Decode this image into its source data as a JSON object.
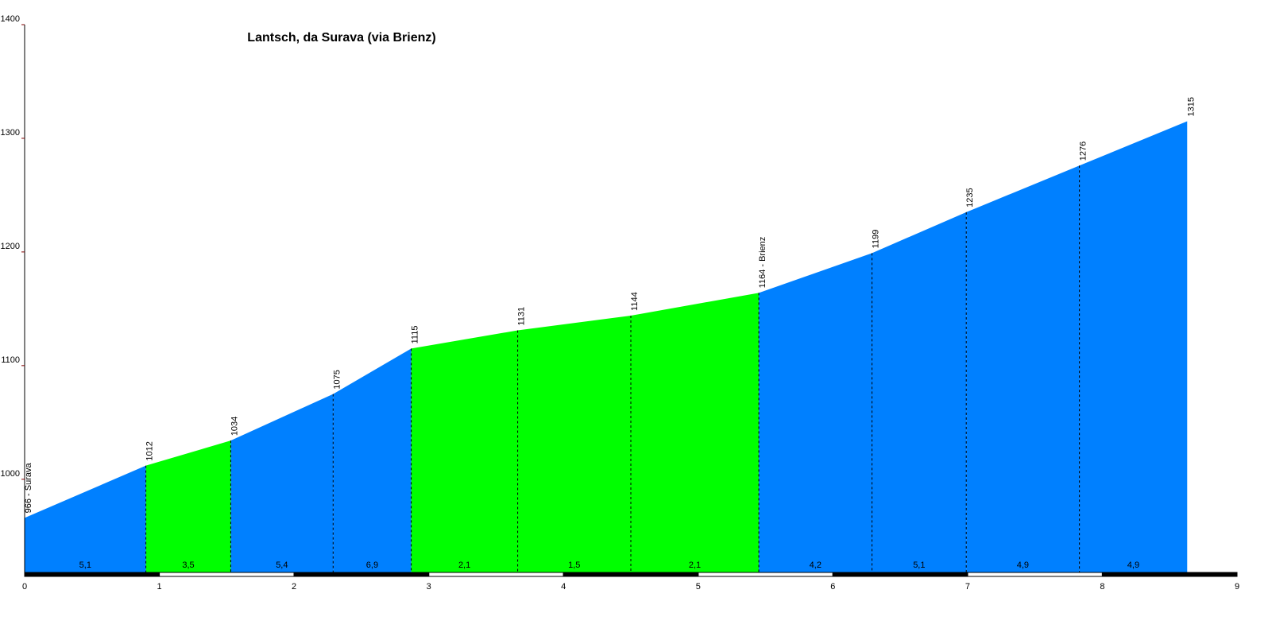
{
  "chart_data": {
    "type": "area",
    "title": "Lantsch, da Surava (via Brienz)",
    "x": [
      0,
      0.9,
      1.53,
      2.29,
      2.87,
      3.66,
      4.5,
      5.45,
      6.29,
      6.99,
      7.83,
      8.63
    ],
    "values": [
      966,
      1012,
      1034,
      1075,
      1115,
      1131,
      1144,
      1164,
      1199,
      1235,
      1276,
      1315
    ],
    "value_labels": [
      "966 - Surava",
      "1012",
      "1034",
      "1075",
      "1115",
      "1131",
      "1144",
      "1164 - Brienz",
      "1199",
      "1235",
      "1276",
      "1315"
    ],
    "segment_labels": [
      "5,1",
      "3,5",
      "5,4",
      "6,9",
      "2,1",
      "1,5",
      "2,1",
      "4,2",
      "5,1",
      "4,9",
      "4,9"
    ],
    "segment_colors": [
      "#0080ff",
      "#00ff00",
      "#0080ff",
      "#0080ff",
      "#00ff00",
      "#00ff00",
      "#00ff00",
      "#0080ff",
      "#0080ff",
      "#0080ff",
      "#0080ff"
    ],
    "xlim": [
      0,
      9
    ],
    "xticks": [
      0,
      1,
      2,
      3,
      4,
      5,
      6,
      7,
      8,
      9
    ],
    "ylim": [
      918,
      1400
    ],
    "yticks": [
      1000,
      1100,
      1200,
      1300,
      1400
    ]
  }
}
